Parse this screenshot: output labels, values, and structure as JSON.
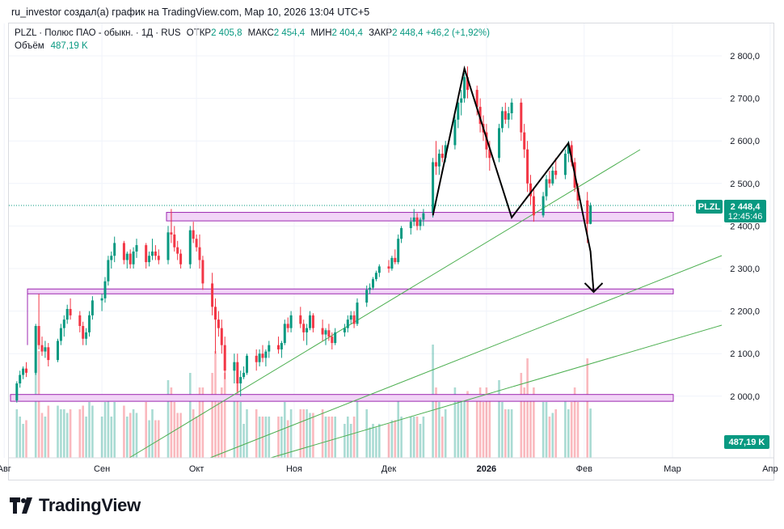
{
  "header": {
    "text": "ru_investor создал(а) график на TradingView.com, Мар 10, 2026 13:04 UTC+5"
  },
  "legend": {
    "symbol": "PLZL · Полюс ПАО - обыкн. · 1Д · RUS",
    "open_label": "ОТКР",
    "open": "2 405,8",
    "high_label": "МАКС",
    "high": "2 454,4",
    "low_label": "МИН",
    "low": "2 404,4",
    "close_label": "ЗАКР",
    "close": "2 448,4",
    "change": "+46,2 (+1,92%)",
    "volume_label": "Объём",
    "volume": "487,19 K"
  },
  "price_label": {
    "ticker": "PLZL",
    "price": "2 448,4",
    "countdown": "12:45:46"
  },
  "volume_label": "487,19 K",
  "logo": {
    "text": "TradingView"
  },
  "colors": {
    "up": "#089981",
    "down": "#f23645",
    "zone_fill": "#f2d5f7",
    "zone_stroke": "#9c27b0",
    "trend": "#4caf50"
  },
  "chart_data": {
    "type": "candlestick",
    "title": "PLZL · Полюс ПАО - обыкн. · 1Д · RUS",
    "y_ticks": [
      "2 800,0",
      "2 700,0",
      "2 600,0",
      "2 500,0",
      "2 400,0",
      "2 300,0",
      "2 200,0",
      "2 100,0",
      "2 000,0"
    ],
    "y_values": [
      2800,
      2700,
      2600,
      2500,
      2400,
      2300,
      2200,
      2100,
      2000
    ],
    "ylim": [
      1880,
      2850
    ],
    "x_ticks": [
      "Авг",
      "Сен",
      "Окт",
      "Ноя",
      "Дек",
      "2026",
      "Фев",
      "Мар",
      "Апр"
    ],
    "x_tick_days": [
      -2,
      29,
      59,
      90,
      120,
      151,
      182,
      210,
      241
    ],
    "start_date": "2025-08-01",
    "last_price": 2448.4,
    "ohlc": [
      [
        2,
        1990,
        2035,
        1985,
        2030
      ],
      [
        3,
        2030,
        2060,
        2020,
        2050
      ],
      [
        4,
        2050,
        2070,
        2040,
        2065
      ],
      [
        5,
        2065,
        2080,
        2045,
        2055
      ],
      [
        8,
        2055,
        2170,
        2050,
        2165
      ],
      [
        9,
        2165,
        2240,
        2110,
        2120
      ],
      [
        10,
        2120,
        2140,
        2095,
        2105
      ],
      [
        11,
        2105,
        2130,
        2090,
        2115
      ],
      [
        12,
        2115,
        2125,
        2070,
        2085
      ],
      [
        15,
        2085,
        2135,
        2080,
        2130
      ],
      [
        16,
        2130,
        2170,
        2120,
        2160
      ],
      [
        17,
        2160,
        2190,
        2140,
        2180
      ],
      [
        18,
        2180,
        2215,
        2170,
        2205
      ],
      [
        19,
        2205,
        2230,
        2180,
        2190
      ],
      [
        22,
        2190,
        2200,
        2150,
        2165
      ],
      [
        23,
        2165,
        2175,
        2120,
        2135
      ],
      [
        24,
        2135,
        2160,
        2120,
        2150
      ],
      [
        25,
        2150,
        2200,
        2140,
        2190
      ],
      [
        26,
        2190,
        2235,
        2180,
        2225
      ],
      [
        29,
        2225,
        2240,
        2200,
        2230
      ],
      [
        30,
        2230,
        2280,
        2220,
        2270
      ],
      [
        31,
        2270,
        2330,
        2260,
        2320
      ],
      [
        32,
        2320,
        2340,
        2300,
        2330
      ],
      [
        33,
        2330,
        2375,
        2315,
        2360
      ],
      [
        36,
        2360,
        2365,
        2310,
        2320
      ],
      [
        37,
        2320,
        2340,
        2300,
        2335
      ],
      [
        38,
        2335,
        2345,
        2300,
        2310
      ],
      [
        39,
        2310,
        2350,
        2300,
        2340
      ],
      [
        40,
        2340,
        2370,
        2325,
        2355
      ],
      [
        43,
        2355,
        2360,
        2300,
        2315
      ],
      [
        44,
        2315,
        2340,
        2305,
        2330
      ],
      [
        45,
        2330,
        2370,
        2320,
        2340
      ],
      [
        46,
        2340,
        2355,
        2320,
        2330
      ],
      [
        47,
        2330,
        2345,
        2310,
        2320
      ],
      [
        50,
        2320,
        2400,
        2310,
        2385
      ],
      [
        51,
        2385,
        2440,
        2360,
        2380
      ],
      [
        52,
        2380,
        2400,
        2340,
        2350
      ],
      [
        53,
        2350,
        2365,
        2320,
        2335
      ],
      [
        54,
        2335,
        2345,
        2300,
        2310
      ],
      [
        57,
        2310,
        2400,
        2300,
        2390
      ],
      [
        58,
        2390,
        2410,
        2360,
        2370
      ],
      [
        59,
        2370,
        2380,
        2340,
        2350
      ],
      [
        60,
        2350,
        2380,
        2300,
        2320
      ],
      [
        61,
        2320,
        2330,
        2250,
        2265
      ],
      [
        64,
        2265,
        2290,
        2190,
        2210
      ],
      [
        65,
        2210,
        2230,
        2100,
        2180
      ],
      [
        66,
        2180,
        2200,
        2140,
        2160
      ],
      [
        67,
        2160,
        2180,
        2100,
        2120
      ],
      [
        68,
        2120,
        2140,
        2040,
        2060
      ],
      [
        71,
        2060,
        2100,
        2030,
        2080
      ],
      [
        72,
        2080,
        2100,
        2010,
        2030
      ],
      [
        73,
        2030,
        2060,
        2000,
        2045
      ],
      [
        74,
        2045,
        2070,
        2040,
        2055
      ],
      [
        75,
        2055,
        2100,
        2050,
        2095
      ],
      [
        78,
        2095,
        2110,
        2060,
        2080
      ],
      [
        79,
        2080,
        2110,
        2070,
        2100
      ],
      [
        80,
        2100,
        2120,
        2080,
        2090
      ],
      [
        81,
        2090,
        2110,
        2070,
        2105
      ],
      [
        82,
        2105,
        2130,
        2090,
        2120
      ],
      [
        85,
        2120,
        2140,
        2100,
        2110
      ],
      [
        86,
        2110,
        2130,
        2090,
        2125
      ],
      [
        87,
        2125,
        2180,
        2120,
        2170
      ],
      [
        88,
        2170,
        2185,
        2150,
        2160
      ],
      [
        89,
        2160,
        2200,
        2150,
        2190
      ],
      [
        92,
        2190,
        2210,
        2160,
        2170
      ],
      [
        93,
        2170,
        2180,
        2130,
        2150
      ],
      [
        94,
        2150,
        2170,
        2120,
        2160
      ],
      [
        95,
        2160,
        2200,
        2155,
        2190
      ],
      [
        96,
        2190,
        2195,
        2150,
        2160
      ],
      [
        99,
        2160,
        2180,
        2130,
        2145
      ],
      [
        100,
        2145,
        2160,
        2120,
        2155
      ],
      [
        101,
        2155,
        2170,
        2130,
        2140
      ],
      [
        102,
        2140,
        2150,
        2110,
        2125
      ],
      [
        103,
        2125,
        2160,
        2120,
        2150
      ],
      [
        106,
        2150,
        2170,
        2140,
        2160
      ],
      [
        107,
        2160,
        2190,
        2150,
        2180
      ],
      [
        108,
        2180,
        2200,
        2170,
        2190
      ],
      [
        109,
        2190,
        2200,
        2160,
        2170
      ],
      [
        110,
        2170,
        2230,
        2165,
        2220
      ],
      [
        113,
        2220,
        2260,
        2210,
        2250
      ],
      [
        114,
        2250,
        2265,
        2240,
        2255
      ],
      [
        115,
        2255,
        2280,
        2250,
        2275
      ],
      [
        116,
        2275,
        2295,
        2270,
        2290
      ],
      [
        117,
        2290,
        2310,
        2280,
        2305
      ],
      [
        120,
        2305,
        2320,
        2290,
        2300
      ],
      [
        121,
        2300,
        2330,
        2295,
        2325
      ],
      [
        122,
        2325,
        2345,
        2310,
        2315
      ],
      [
        123,
        2315,
        2380,
        2310,
        2370
      ],
      [
        124,
        2370,
        2400,
        2360,
        2395
      ],
      [
        127,
        2395,
        2420,
        2380,
        2410
      ],
      [
        128,
        2410,
        2440,
        2400,
        2420
      ],
      [
        129,
        2420,
        2430,
        2390,
        2400
      ],
      [
        130,
        2400,
        2420,
        2390,
        2415
      ],
      [
        131,
        2415,
        2440,
        2400,
        2430
      ],
      [
        134,
        2430,
        2560,
        2420,
        2550
      ],
      [
        135,
        2550,
        2600,
        2520,
        2540
      ],
      [
        136,
        2540,
        2580,
        2520,
        2570
      ],
      [
        137,
        2570,
        2590,
        2550,
        2560
      ],
      [
        138,
        2560,
        2600,
        2550,
        2590
      ],
      [
        141,
        2590,
        2660,
        2580,
        2650
      ],
      [
        142,
        2650,
        2700,
        2630,
        2690
      ],
      [
        143,
        2690,
        2720,
        2660,
        2700
      ],
      [
        144,
        2700,
        2760,
        2690,
        2750
      ],
      [
        145,
        2750,
        2775,
        2700,
        2720
      ],
      [
        148,
        2720,
        2730,
        2660,
        2680
      ],
      [
        149,
        2680,
        2700,
        2620,
        2640
      ],
      [
        150,
        2640,
        2660,
        2600,
        2620
      ],
      [
        151,
        2620,
        2640,
        2560,
        2580
      ],
      [
        152,
        2580,
        2600,
        2530,
        2560
      ],
      [
        155,
        2560,
        2640,
        2550,
        2630
      ],
      [
        156,
        2630,
        2680,
        2620,
        2670
      ],
      [
        157,
        2670,
        2690,
        2640,
        2650
      ],
      [
        158,
        2650,
        2680,
        2630,
        2665
      ],
      [
        159,
        2665,
        2700,
        2650,
        2690
      ],
      [
        162,
        2690,
        2700,
        2600,
        2620
      ],
      [
        163,
        2620,
        2640,
        2560,
        2580
      ],
      [
        164,
        2580,
        2600,
        2480,
        2500
      ],
      [
        165,
        2500,
        2520,
        2450,
        2470
      ],
      [
        166,
        2470,
        2490,
        2410,
        2425
      ],
      [
        169,
        2425,
        2480,
        2420,
        2470
      ],
      [
        170,
        2470,
        2520,
        2460,
        2510
      ],
      [
        171,
        2510,
        2530,
        2490,
        2500
      ],
      [
        172,
        2500,
        2540,
        2495,
        2530
      ],
      [
        173,
        2530,
        2560,
        2510,
        2520
      ],
      [
        176,
        2520,
        2580,
        2510,
        2570
      ],
      [
        177,
        2570,
        2600,
        2550,
        2590
      ],
      [
        178,
        2590,
        2600,
        2540,
        2550
      ],
      [
        179,
        2550,
        2560,
        2480,
        2490
      ],
      [
        180,
        2490,
        2500,
        2440,
        2460
      ],
      [
        183,
        2460,
        2480,
        2360,
        2405
      ],
      [
        184,
        2405,
        2455,
        2404,
        2448
      ]
    ],
    "zones": [
      [
        2412,
        2432
      ],
      [
        2242,
        2252
      ],
      [
        1988,
        2004
      ]
    ],
    "pattern_line": [
      [
        134,
        2425
      ],
      [
        144,
        2770
      ],
      [
        159,
        2420
      ],
      [
        177,
        2595
      ],
      [
        184,
        2340
      ],
      [
        185,
        2245
      ]
    ]
  }
}
